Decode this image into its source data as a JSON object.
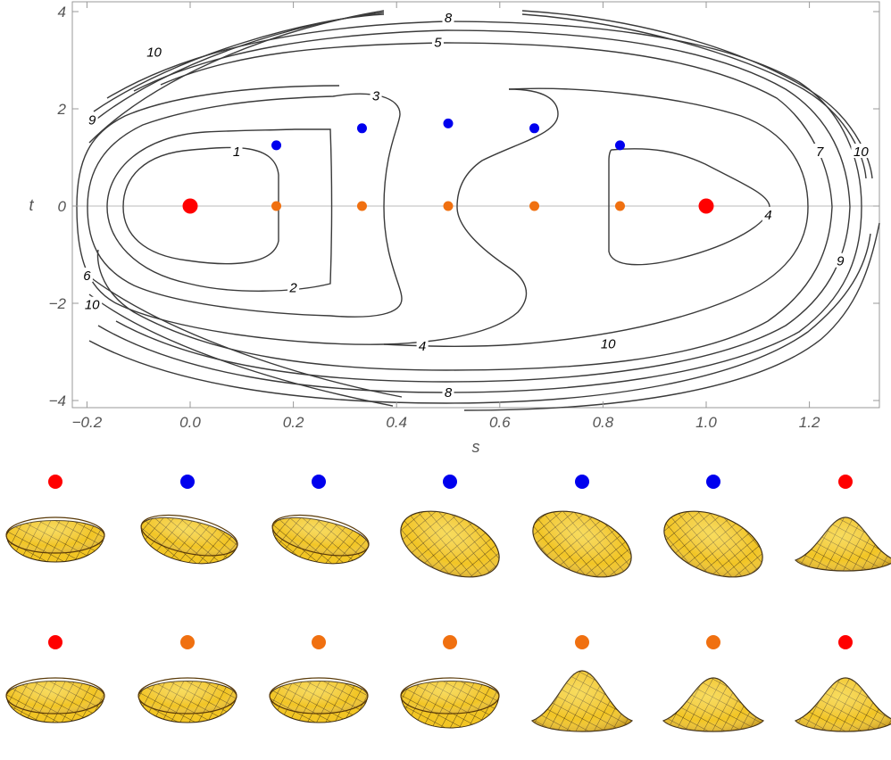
{
  "chart_data": {
    "type": "contour",
    "xlabel": "s",
    "ylabel": "t",
    "xlim": [
      -0.23,
      1.32
    ],
    "ylim": [
      -4.2,
      4.2
    ],
    "x_ticks": [
      "-0.2",
      "0.0",
      "0.2",
      "0.4",
      "0.6",
      "0.8",
      "1.0",
      "1.2"
    ],
    "y_ticks": [
      "4",
      "2",
      "0",
      "-2",
      "-4"
    ],
    "grid": false,
    "contour_labels": [
      {
        "text": "8",
        "s": 0.5,
        "t": 3.85
      },
      {
        "text": "5",
        "s": 0.48,
        "t": 3.35
      },
      {
        "text": "10",
        "s": -0.07,
        "t": 3.15
      },
      {
        "text": "9",
        "s": -0.19,
        "t": 1.75
      },
      {
        "text": "3",
        "s": 0.36,
        "t": 2.25
      },
      {
        "text": "1",
        "s": 0.09,
        "t": 1.1
      },
      {
        "text": "7",
        "s": 1.22,
        "t": 1.1
      },
      {
        "text": "10",
        "s": 1.3,
        "t": 1.1
      },
      {
        "text": "4",
        "s": 1.12,
        "t": -0.2
      },
      {
        "text": "9",
        "s": 1.26,
        "t": -1.15
      },
      {
        "text": "6",
        "s": -0.2,
        "t": -1.45
      },
      {
        "text": "10",
        "s": -0.19,
        "t": -2.05
      },
      {
        "text": "2",
        "s": 0.2,
        "t": -1.7
      },
      {
        "text": "4",
        "s": 0.45,
        "t": -2.9
      },
      {
        "text": "10",
        "s": 0.81,
        "t": -2.85
      },
      {
        "text": "8",
        "s": 0.5,
        "t": -3.85
      }
    ],
    "points": [
      {
        "s": 0.0,
        "t": 0.0,
        "color": "#ff0000",
        "size": "large"
      },
      {
        "s": 1.0,
        "t": 0.0,
        "color": "#ff0000",
        "size": "large"
      },
      {
        "s": 0.167,
        "t": 1.25,
        "color": "#0000ee",
        "size": "small"
      },
      {
        "s": 0.333,
        "t": 1.6,
        "color": "#0000ee",
        "size": "small"
      },
      {
        "s": 0.5,
        "t": 1.7,
        "color": "#0000ee",
        "size": "small"
      },
      {
        "s": 0.667,
        "t": 1.6,
        "color": "#0000ee",
        "size": "small"
      },
      {
        "s": 0.833,
        "t": 1.25,
        "color": "#0000ee",
        "size": "small"
      },
      {
        "s": 0.167,
        "t": 0.0,
        "color": "#f07010",
        "size": "small"
      },
      {
        "s": 0.333,
        "t": 0.0,
        "color": "#f07010",
        "size": "small"
      },
      {
        "s": 0.5,
        "t": 0.0,
        "color": "#f07010",
        "size": "small"
      },
      {
        "s": 0.667,
        "t": 0.0,
        "color": "#f07010",
        "size": "small"
      },
      {
        "s": 0.833,
        "t": 0.0,
        "color": "#f07010",
        "size": "small"
      }
    ],
    "surface_rows": [
      {
        "dots": [
          "#ff0000",
          "#0000ee",
          "#0000ee",
          "#0000ee",
          "#0000ee",
          "#0000ee",
          "#ff0000"
        ],
        "shapes": [
          "bowl",
          "bowl-tilt",
          "bowl-tilt",
          "ripple-tilt",
          "hump-tilt",
          "hump-tilt",
          "dome"
        ]
      },
      {
        "dots": [
          "#ff0000",
          "#f07010",
          "#f07010",
          "#f07010",
          "#f07010",
          "#f07010",
          "#ff0000"
        ],
        "shapes": [
          "bowl",
          "bowl",
          "bowl",
          "deep-bowl",
          "peaked-dome",
          "dome",
          "dome"
        ]
      }
    ]
  },
  "colors": {
    "contour": "#3a3a3a",
    "frame": "#999999",
    "surface_fill": "#f0c020",
    "surface_mesh": "#3a2a10",
    "surface_edge": "#8a5a10"
  }
}
